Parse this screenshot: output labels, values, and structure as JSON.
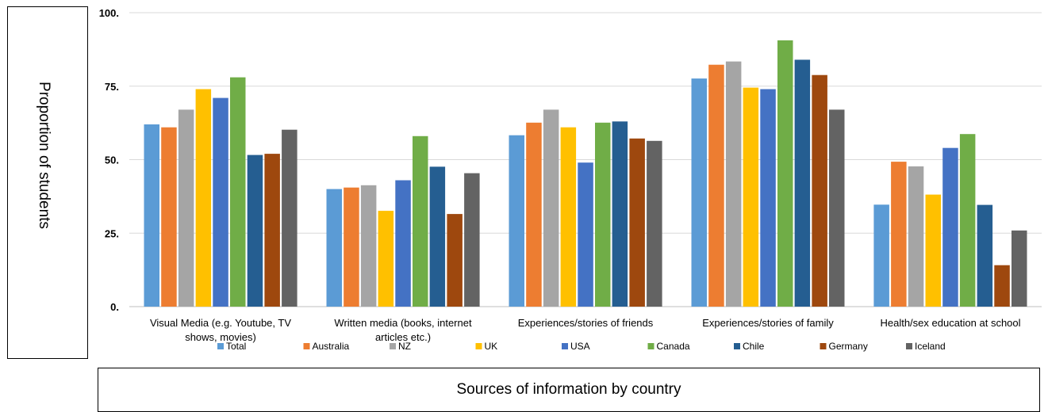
{
  "chart_data": {
    "type": "bar",
    "title": "",
    "xlabel": "Sources of information by country",
    "ylabel": "Proportion of students",
    "ylim": [
      0,
      100
    ],
    "yticks": [
      "0.",
      "25.",
      "50.",
      "75.",
      "100."
    ],
    "ytick_values": [
      0,
      25,
      50,
      75,
      100
    ],
    "grid": true,
    "legend_position": "bottom",
    "categories": [
      "Visual Media (e.g. Youtube, TV shows, movies)",
      "Written media (books, internet articles etc.)",
      "Experiences/stories of friends",
      "Experiences/stories of family",
      "Health/sex education at school"
    ],
    "category_lines": [
      [
        "Visual Media (e.g. Youtube, TV",
        "shows, movies)"
      ],
      [
        "Written media (books, internet",
        "articles etc.)"
      ],
      [
        "Experiences/stories of friends"
      ],
      [
        "Experiences/stories of family"
      ],
      [
        "Health/sex education at school"
      ]
    ],
    "series": [
      {
        "name": "Total",
        "color": "#5b9bd5",
        "values": [
          62,
          40,
          58.3,
          77.6,
          34.7
        ]
      },
      {
        "name": "Australia",
        "color": "#ed7d31",
        "values": [
          61,
          40.5,
          62.6,
          82.3,
          49.3
        ]
      },
      {
        "name": "NZ",
        "color": "#a5a5a5",
        "values": [
          67,
          41.3,
          67,
          83.4,
          47.7
        ]
      },
      {
        "name": "UK",
        "color": "#ffc000",
        "values": [
          74,
          32.6,
          61,
          74.5,
          38.1
        ]
      },
      {
        "name": "USA",
        "color": "#4472c4",
        "values": [
          71,
          43,
          49,
          74,
          54
        ]
      },
      {
        "name": "Canada",
        "color": "#70ad47",
        "values": [
          78,
          58,
          62.6,
          90.6,
          58.7
        ]
      },
      {
        "name": "Chile",
        "color": "#255e91",
        "values": [
          51.6,
          47.6,
          63,
          84,
          34.6
        ]
      },
      {
        "name": "Germany",
        "color": "#9e480e",
        "values": [
          52,
          31.5,
          57.2,
          78.8,
          14.1
        ]
      },
      {
        "name": "Iceland",
        "color": "#636363",
        "values": [
          60.2,
          45.4,
          56.4,
          67,
          25.9
        ]
      }
    ]
  }
}
